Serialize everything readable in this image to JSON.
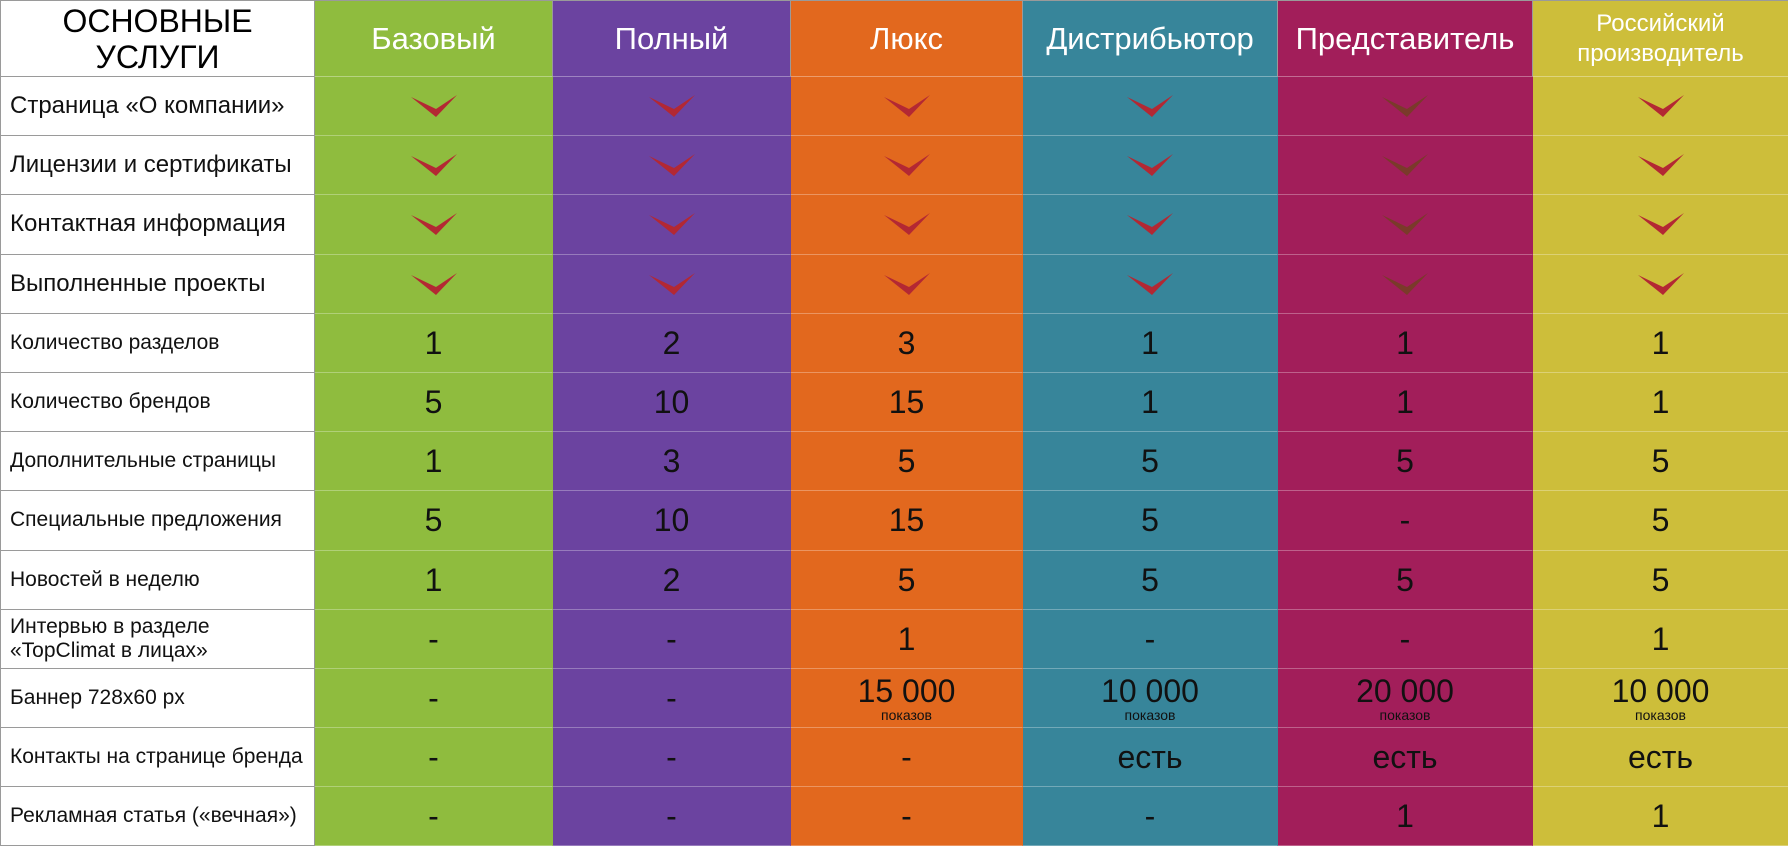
{
  "header": {
    "corner_line1": "ОСНОВНЫЕ",
    "corner_line2": "УСЛУГИ"
  },
  "colors": {
    "check_default": "#b32833",
    "check_on_magenta": "#7a3a2a"
  },
  "plans": [
    {
      "name": "Базовый",
      "color": "#8fbc3e"
    },
    {
      "name": "Полный",
      "color": "#6b43a0"
    },
    {
      "name": "Люкс",
      "color": "#e2681e"
    },
    {
      "name": "Дистрибьютор",
      "color": "#37859a"
    },
    {
      "name": "Представитель",
      "color": "#a21e5a"
    },
    {
      "name": "Российский производитель",
      "line1": "Российский",
      "line2": "производитель",
      "color": "#cdbe3a"
    }
  ],
  "rows": [
    {
      "label": "Страница «О компании»",
      "large": true,
      "cells": [
        {
          "check": true
        },
        {
          "check": true
        },
        {
          "check": true
        },
        {
          "check": true
        },
        {
          "check": true
        },
        {
          "check": true
        }
      ]
    },
    {
      "label": "Лицензии и сертификаты",
      "large": true,
      "cells": [
        {
          "check": true
        },
        {
          "check": true
        },
        {
          "check": true
        },
        {
          "check": true
        },
        {
          "check": true
        },
        {
          "check": true
        }
      ]
    },
    {
      "label": "Контактная информация",
      "large": true,
      "cells": [
        {
          "check": true
        },
        {
          "check": true
        },
        {
          "check": true
        },
        {
          "check": true
        },
        {
          "check": true
        },
        {
          "check": true
        }
      ]
    },
    {
      "label": "Выполненные проекты",
      "large": true,
      "cells": [
        {
          "check": true
        },
        {
          "check": true
        },
        {
          "check": true
        },
        {
          "check": true
        },
        {
          "check": true
        },
        {
          "check": true
        }
      ]
    },
    {
      "label": "Количество разделов",
      "cells": [
        {
          "v": "1"
        },
        {
          "v": "2"
        },
        {
          "v": "3"
        },
        {
          "v": "1"
        },
        {
          "v": "1"
        },
        {
          "v": "1"
        }
      ]
    },
    {
      "label": "Количество брендов",
      "cells": [
        {
          "v": "5"
        },
        {
          "v": "10"
        },
        {
          "v": "15"
        },
        {
          "v": "1"
        },
        {
          "v": "1"
        },
        {
          "v": "1"
        }
      ]
    },
    {
      "label": "Дополнительные страницы",
      "cells": [
        {
          "v": "1"
        },
        {
          "v": "3"
        },
        {
          "v": "5"
        },
        {
          "v": "5"
        },
        {
          "v": "5"
        },
        {
          "v": "5"
        }
      ]
    },
    {
      "label": "Специальные предложения",
      "cells": [
        {
          "v": "5"
        },
        {
          "v": "10"
        },
        {
          "v": "15"
        },
        {
          "v": "5"
        },
        {
          "v": "-"
        },
        {
          "v": "5"
        }
      ]
    },
    {
      "label": "Новостей в неделю",
      "cells": [
        {
          "v": "1"
        },
        {
          "v": "2"
        },
        {
          "v": "5"
        },
        {
          "v": "5"
        },
        {
          "v": "5"
        },
        {
          "v": "5"
        }
      ]
    },
    {
      "label_line1": "Интервью в разделе",
      "label_line2": "«TopClimat в лицах»",
      "cells": [
        {
          "v": "-"
        },
        {
          "v": "-"
        },
        {
          "v": "1"
        },
        {
          "v": "-"
        },
        {
          "v": "-"
        },
        {
          "v": "1"
        }
      ]
    },
    {
      "label": "Баннер 728x60 px",
      "cells": [
        {
          "v": "-"
        },
        {
          "v": "-"
        },
        {
          "v": "15 000",
          "sub": "показов"
        },
        {
          "v": "10 000",
          "sub": "показов"
        },
        {
          "v": "20 000",
          "sub": "показов"
        },
        {
          "v": "10 000",
          "sub": "показов"
        }
      ]
    },
    {
      "label": "Контакты на странице бренда",
      "cells": [
        {
          "v": "-"
        },
        {
          "v": "-"
        },
        {
          "v": "-"
        },
        {
          "v": "есть"
        },
        {
          "v": "есть"
        },
        {
          "v": "есть"
        }
      ]
    },
    {
      "label": "Рекламная статья («вечная»)",
      "cells": [
        {
          "v": "-"
        },
        {
          "v": "-"
        },
        {
          "v": "-"
        },
        {
          "v": "-"
        },
        {
          "v": "1"
        },
        {
          "v": "1"
        }
      ]
    }
  ]
}
